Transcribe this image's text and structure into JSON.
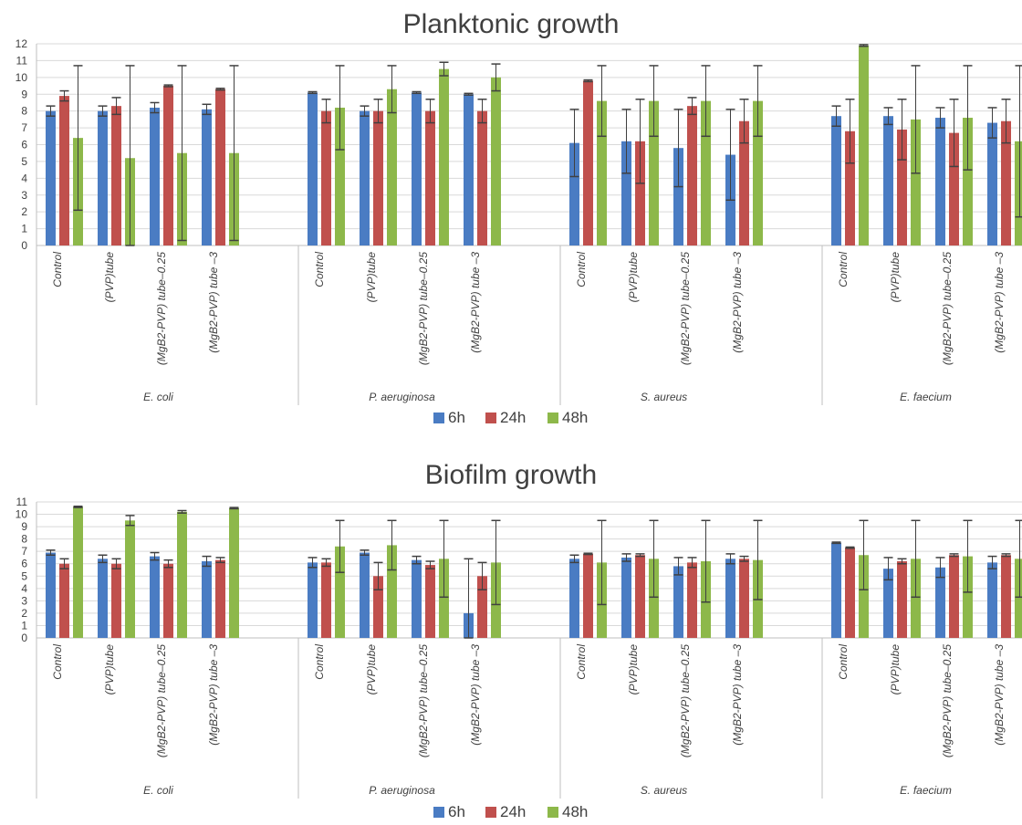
{
  "chart_data": [
    {
      "type": "bar",
      "title": "Planktonic growth",
      "ylim": [
        0,
        12
      ],
      "yticks": [
        0,
        1,
        2,
        3,
        4,
        5,
        6,
        7,
        8,
        9,
        10,
        11,
        12
      ],
      "grid": true,
      "legend_position": "bottom",
      "groups": [
        "E. coli",
        "P. aeruginosa",
        "S. aureus",
        "E. faecium"
      ],
      "categories": [
        "Control",
        "(PVP)tube",
        "(MgB2-PVP) tube–0.25",
        "(MgB2-PVP) tube –3"
      ],
      "series": [
        {
          "name": "6h",
          "color": "#4a7cc3",
          "values": [
            [
              8.0,
              8.0,
              8.2,
              8.1
            ],
            [
              9.1,
              8.0,
              9.1,
              9.0
            ],
            [
              6.1,
              6.2,
              5.8,
              5.4
            ],
            [
              7.7,
              7.7,
              7.6,
              7.3
            ]
          ],
          "error": [
            [
              0.3,
              0.3,
              0.3,
              0.3
            ],
            [
              0.05,
              0.3,
              0.05,
              0.05
            ],
            [
              2.0,
              1.9,
              2.3,
              2.7
            ],
            [
              0.6,
              0.5,
              0.6,
              0.9
            ]
          ]
        },
        {
          "name": "24h",
          "color": "#c0504d",
          "values": [
            [
              8.9,
              8.3,
              9.5,
              9.3
            ],
            [
              8.0,
              8.0,
              8.0,
              8.0
            ],
            [
              9.8,
              6.2,
              8.3,
              7.4
            ],
            [
              6.8,
              6.9,
              6.7,
              7.4
            ]
          ],
          "error": [
            [
              0.3,
              0.5,
              0.05,
              0.05
            ],
            [
              0.7,
              0.7,
              0.7,
              0.7
            ],
            [
              0.05,
              2.5,
              0.5,
              1.3
            ],
            [
              1.9,
              1.8,
              2.0,
              1.3
            ]
          ]
        },
        {
          "name": "48h",
          "color": "#8db84a",
          "values": [
            [
              6.4,
              5.2,
              5.5,
              5.5
            ],
            [
              8.2,
              9.3,
              10.5,
              10.0
            ],
            [
              8.6,
              8.6,
              8.6,
              8.6
            ],
            [
              11.9,
              7.5,
              7.6,
              6.2
            ]
          ],
          "error": [
            [
              4.3,
              5.5,
              5.2,
              5.2
            ],
            [
              2.5,
              1.4,
              0.4,
              0.8
            ],
            [
              2.1,
              2.1,
              2.1,
              2.1
            ],
            [
              0.05,
              3.2,
              3.1,
              4.5
            ]
          ]
        }
      ]
    },
    {
      "type": "bar",
      "title": "Biofilm growth",
      "ylim": [
        0,
        11
      ],
      "yticks": [
        0,
        1,
        2,
        3,
        4,
        5,
        6,
        7,
        8,
        9,
        10,
        11
      ],
      "grid": true,
      "legend_position": "bottom",
      "groups": [
        "E. coli",
        "P. aeruginosa",
        "S. aureus",
        "E. faecium"
      ],
      "categories": [
        "Control",
        "(PVP)tube",
        "(MgB2-PVP) tube–0.25",
        "(MgB2-PVP) tube –3"
      ],
      "series": [
        {
          "name": "6h",
          "color": "#4a7cc3",
          "values": [
            [
              6.9,
              6.4,
              6.6,
              6.2
            ],
            [
              6.1,
              6.9,
              6.3,
              2.0
            ],
            [
              6.4,
              6.5,
              5.8,
              6.4
            ],
            [
              7.7,
              5.6,
              5.7,
              6.1
            ]
          ],
          "error": [
            [
              0.2,
              0.3,
              0.3,
              0.4
            ],
            [
              0.4,
              0.2,
              0.3,
              4.4
            ],
            [
              0.3,
              0.3,
              0.7,
              0.4
            ],
            [
              0.05,
              0.9,
              0.8,
              0.5
            ]
          ]
        },
        {
          "name": "24h",
          "color": "#c0504d",
          "values": [
            [
              6.0,
              6.0,
              6.0,
              6.3
            ],
            [
              6.1,
              5.0,
              5.9,
              5.0
            ],
            [
              6.8,
              6.7,
              6.1,
              6.4
            ],
            [
              7.3,
              6.2,
              6.7,
              6.7
            ]
          ],
          "error": [
            [
              0.4,
              0.4,
              0.3,
              0.2
            ],
            [
              0.3,
              1.1,
              0.3,
              1.1
            ],
            [
              0.05,
              0.1,
              0.4,
              0.2
            ],
            [
              0.05,
              0.2,
              0.1,
              0.1
            ]
          ]
        },
        {
          "name": "48h",
          "color": "#8db84a",
          "values": [
            [
              10.6,
              9.5,
              10.2,
              10.5
            ],
            [
              7.4,
              7.5,
              6.4,
              6.1
            ],
            [
              6.1,
              6.4,
              6.2,
              6.3
            ],
            [
              6.7,
              6.4,
              6.6,
              6.4
            ]
          ],
          "error": [
            [
              0.05,
              0.4,
              0.1,
              0.05
            ],
            [
              2.1,
              2.0,
              3.1,
              3.4
            ],
            [
              3.4,
              3.1,
              3.3,
              3.2
            ],
            [
              2.8,
              3.1,
              2.9,
              3.1
            ]
          ]
        }
      ]
    }
  ]
}
